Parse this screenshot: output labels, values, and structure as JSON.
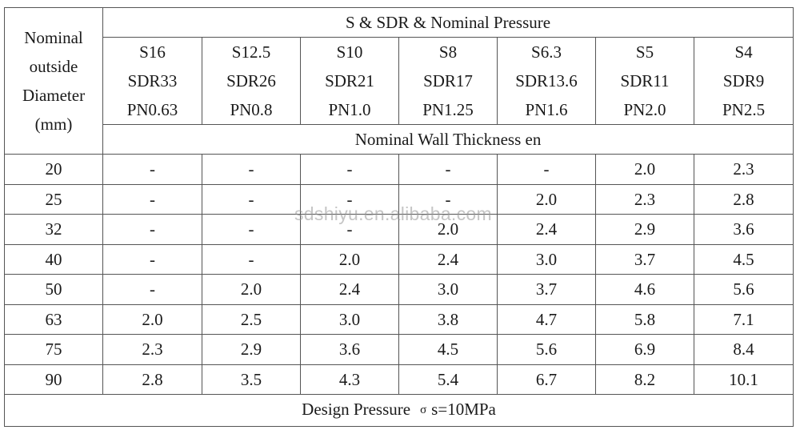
{
  "table": {
    "diameter_header": [
      "Nominal",
      "outside",
      "Diameter",
      "(mm)"
    ],
    "group_header": "S & SDR & Nominal Pressure",
    "sub_header_label": "Nominal Wall Thickness en",
    "series": [
      {
        "s": "S16",
        "sdr": "SDR33",
        "pn": "PN0.63"
      },
      {
        "s": "S12.5",
        "sdr": "SDR26",
        "pn": "PN0.8"
      },
      {
        "s": "S10",
        "sdr": "SDR21",
        "pn": "PN1.0"
      },
      {
        "s": "S8",
        "sdr": "SDR17",
        "pn": "PN1.25"
      },
      {
        "s": "S6.3",
        "sdr": "SDR13.6",
        "pn": "PN1.6"
      },
      {
        "s": "S5",
        "sdr": "SDR11",
        "pn": "PN2.0"
      },
      {
        "s": "S4",
        "sdr": "SDR9",
        "pn": "PN2.5"
      }
    ],
    "rows": [
      {
        "diameter": "20",
        "values": [
          "-",
          "-",
          "-",
          "-",
          "-",
          "2.0",
          "2.3"
        ]
      },
      {
        "diameter": "25",
        "values": [
          "-",
          "-",
          "-",
          "-",
          "2.0",
          "2.3",
          "2.8"
        ]
      },
      {
        "diameter": "32",
        "values": [
          "-",
          "-",
          "-",
          "2.0",
          "2.4",
          "2.9",
          "3.6"
        ]
      },
      {
        "diameter": "40",
        "values": [
          "-",
          "-",
          "2.0",
          "2.4",
          "3.0",
          "3.7",
          "4.5"
        ]
      },
      {
        "diameter": "50",
        "values": [
          "-",
          "2.0",
          "2.4",
          "3.0",
          "3.7",
          "4.6",
          "5.6"
        ]
      },
      {
        "diameter": "63",
        "values": [
          "2.0",
          "2.5",
          "3.0",
          "3.8",
          "4.7",
          "5.8",
          "7.1"
        ]
      },
      {
        "diameter": "75",
        "values": [
          "2.3",
          "2.9",
          "3.6",
          "4.5",
          "5.6",
          "6.9",
          "8.4"
        ]
      },
      {
        "diameter": "90",
        "values": [
          "2.8",
          "3.5",
          "4.3",
          "5.4",
          "6.7",
          "8.2",
          "10.1"
        ]
      }
    ],
    "footer": {
      "label": "Design Pressure",
      "symbol": "σ",
      "value": "s=10MPa"
    }
  },
  "watermark": "sdshiyu.en.alibaba.com"
}
